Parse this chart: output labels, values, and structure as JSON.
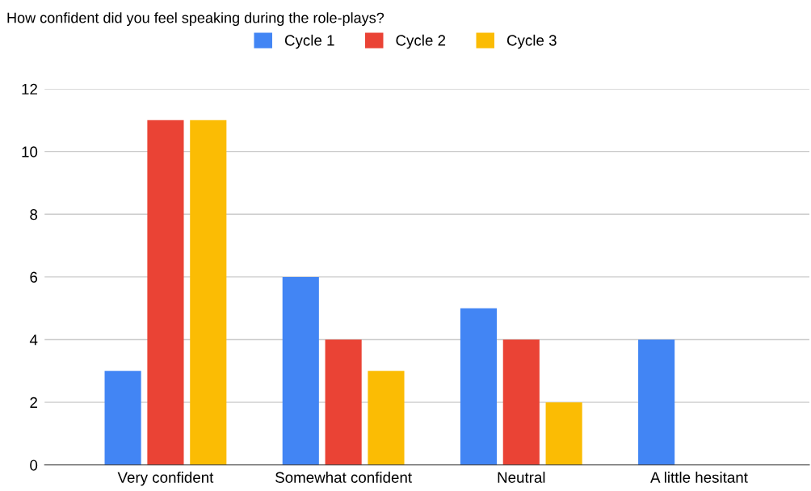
{
  "chart_data": {
    "type": "bar",
    "title": "How confident did you feel speaking during the role-plays?",
    "categories": [
      "Very confident",
      "Somewhat confident",
      "Neutral",
      "A little hesitant"
    ],
    "series": [
      {
        "name": "Cycle 1",
        "color": "#4285f4",
        "values": [
          3,
          6,
          5,
          4
        ]
      },
      {
        "name": "Cycle 2",
        "color": "#ea4335",
        "values": [
          11,
          4,
          4,
          0
        ]
      },
      {
        "name": "Cycle 3",
        "color": "#fbbc04",
        "values": [
          11,
          3,
          2,
          0
        ]
      }
    ],
    "ylim": [
      0,
      12
    ],
    "yticks": [
      0,
      2,
      4,
      6,
      8,
      10,
      12
    ],
    "grid": "y",
    "legend": "top"
  }
}
